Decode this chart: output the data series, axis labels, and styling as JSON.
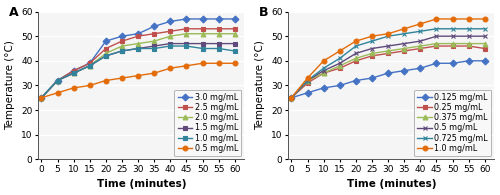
{
  "time": [
    0,
    5,
    10,
    15,
    20,
    25,
    30,
    35,
    40,
    45,
    50,
    55,
    60
  ],
  "panel_A": {
    "title": "A",
    "series": [
      {
        "label": "3.0 mg/mL",
        "color": "#4472C4",
        "marker": "D",
        "mfc": "#4472C4",
        "values": [
          25,
          32,
          36,
          39,
          48,
          50,
          51,
          54,
          56,
          57,
          57,
          57,
          57
        ]
      },
      {
        "label": "2.5 mg/mL",
        "color": "#C0504D",
        "marker": "s",
        "mfc": "#C0504D",
        "values": [
          25,
          32,
          36,
          39,
          45,
          48,
          50,
          51,
          52,
          53,
          53,
          53,
          53
        ]
      },
      {
        "label": "2.0 mg/mL",
        "color": "#9BBB59",
        "marker": "^",
        "mfc": "#9BBB59",
        "values": [
          25,
          32,
          35,
          38,
          43,
          46,
          47,
          48,
          50,
          51,
          51,
          51,
          51
        ]
      },
      {
        "label": "1.5 mg/mL",
        "color": "#604A7B",
        "marker": "s",
        "mfc": "#604A7B",
        "values": [
          25,
          32,
          35,
          38,
          42,
          44,
          45,
          46,
          47,
          47,
          47,
          47,
          47
        ]
      },
      {
        "label": "1.0 mg/mL",
        "color": "#31849B",
        "marker": "s",
        "mfc": "#31849B",
        "values": [
          25,
          32,
          35,
          38,
          42,
          44,
          45,
          45,
          46,
          46,
          45,
          45,
          44
        ]
      },
      {
        "label": "0.5 mg/mL",
        "color": "#E36C09",
        "marker": "o",
        "mfc": "#E36C09",
        "values": [
          25,
          27,
          29,
          30,
          32,
          33,
          34,
          35,
          37,
          38,
          39,
          39,
          39
        ]
      }
    ],
    "ylabel": "Temperature (°C)",
    "xlabel": "Time (minutes)",
    "ylim": [
      0,
      60
    ],
    "yticks": [
      0,
      10,
      20,
      30,
      40,
      50,
      60
    ]
  },
  "panel_B": {
    "title": "B",
    "series": [
      {
        "label": "0.125 mg/mL",
        "color": "#4472C4",
        "marker": "D",
        "mfc": "#4472C4",
        "values": [
          25,
          27,
          29,
          30,
          32,
          33,
          35,
          36,
          37,
          39,
          39,
          40,
          40
        ]
      },
      {
        "label": "0.25 mg/mL",
        "color": "#C0504D",
        "marker": "s",
        "mfc": "#C0504D",
        "values": [
          25,
          31,
          35,
          37,
          40,
          42,
          43,
          44,
          45,
          46,
          46,
          46,
          45
        ]
      },
      {
        "label": "0.375 mg/mL",
        "color": "#9BBB59",
        "marker": "^",
        "mfc": "#9BBB59",
        "values": [
          25,
          32,
          35,
          38,
          41,
          43,
          44,
          45,
          46,
          47,
          47,
          47,
          47
        ]
      },
      {
        "label": "0.5 mg/mL",
        "color": "#604A7B",
        "marker": "x",
        "mfc": "#604A7B",
        "values": [
          25,
          32,
          36,
          39,
          43,
          45,
          46,
          47,
          48,
          50,
          50,
          50,
          50
        ]
      },
      {
        "label": "0.725 mg/mL",
        "color": "#31849B",
        "marker": "x",
        "mfc": "#31849B",
        "values": [
          25,
          32,
          37,
          41,
          46,
          48,
          50,
          51,
          52,
          53,
          53,
          53,
          53
        ]
      },
      {
        "label": "1.0 mg/mL",
        "color": "#E36C09",
        "marker": "o",
        "mfc": "#E36C09",
        "values": [
          25,
          33,
          40,
          44,
          48,
          50,
          51,
          53,
          55,
          57,
          57,
          57,
          57
        ]
      }
    ],
    "ylabel": "Temperature (°C)",
    "xlabel": "Time (minutes)",
    "ylim": [
      0,
      60
    ],
    "yticks": [
      0,
      10,
      20,
      30,
      40,
      50,
      60
    ]
  },
  "bg_color": "#ffffff",
  "plot_bg_color": "#f5f5f5",
  "grid_color": "#ffffff",
  "legend_fontsize": 5.8,
  "axis_label_fontsize": 7.5,
  "tick_fontsize": 6.5,
  "title_fontsize": 9,
  "linewidth": 1.0,
  "markersize": 3.5,
  "markeredgewidth": 0.8
}
